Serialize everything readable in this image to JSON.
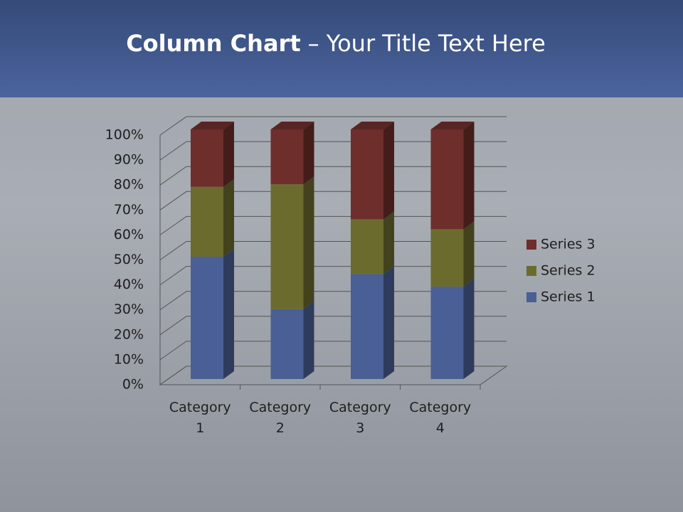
{
  "chart_data": {
    "type": "bar",
    "stacked": true,
    "title": {
      "bold": "Column Chart",
      "rest": "– Your Title Text Here"
    },
    "categories": [
      "Category 1",
      "Category 2",
      "Category 3",
      "Category 4"
    ],
    "series": [
      {
        "name": "Series 1",
        "color": "#4a5f96",
        "values": [
          49,
          28,
          42,
          37
        ]
      },
      {
        "name": "Series 2",
        "color": "#6b6b2e",
        "values": [
          28,
          50,
          22,
          23
        ]
      },
      {
        "name": "Series 3",
        "color": "#6e2e2c",
        "values": [
          23,
          22,
          36,
          40
        ]
      }
    ],
    "ylim": [
      0,
      100
    ],
    "yticks": [
      {
        "value": 0,
        "label": "0%"
      },
      {
        "value": 10,
        "label": "10%"
      },
      {
        "value": 20,
        "label": "20%"
      },
      {
        "value": 30,
        "label": "30%"
      },
      {
        "value": 40,
        "label": "40%"
      },
      {
        "value": 50,
        "label": "50%"
      },
      {
        "value": 60,
        "label": "60%"
      },
      {
        "value": 70,
        "label": "70%"
      },
      {
        "value": 80,
        "label": "80%"
      },
      {
        "value": 90,
        "label": "90%"
      },
      {
        "value": 100,
        "label": "100%"
      }
    ],
    "grid": true,
    "legend": "right"
  }
}
